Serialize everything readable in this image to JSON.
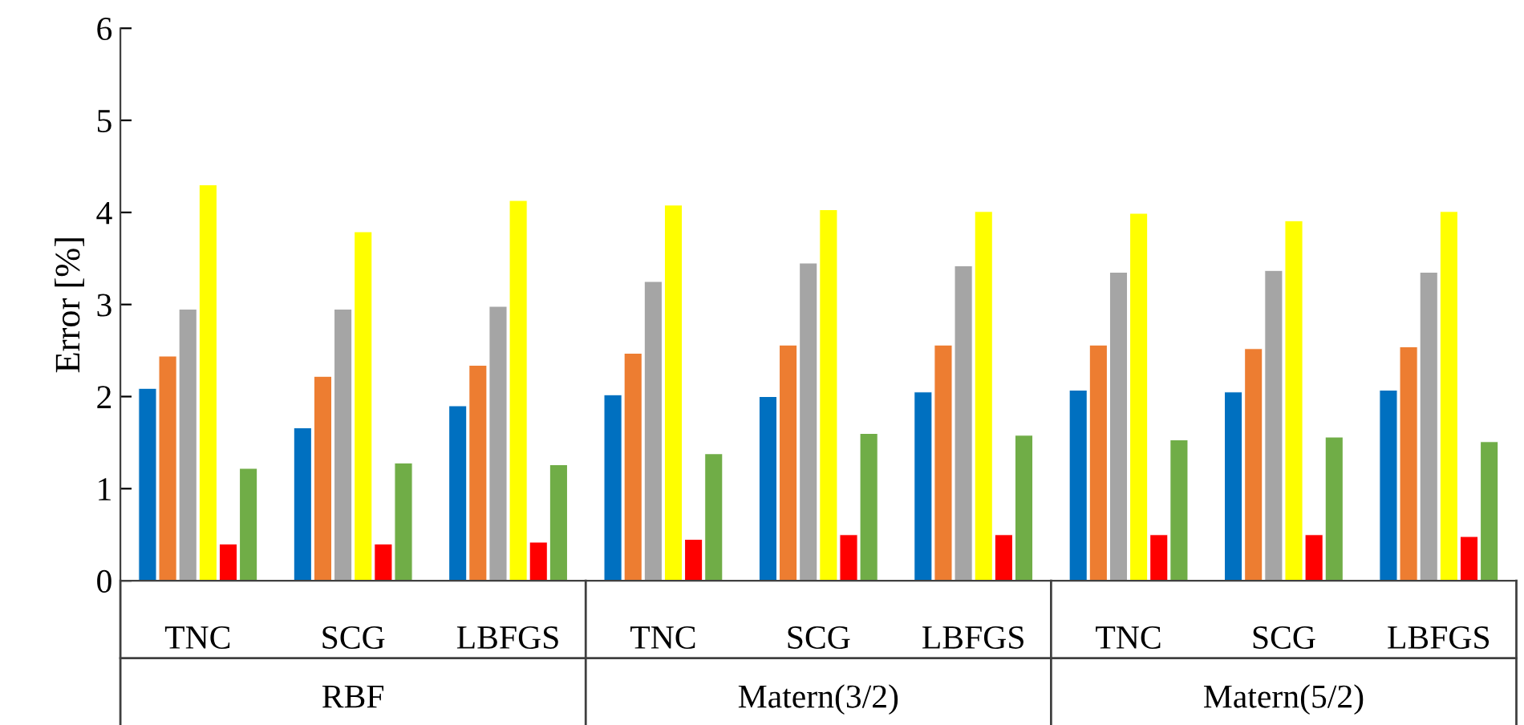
{
  "chart_data": {
    "type": "bar",
    "ylabel": "Error [%]",
    "categories": [
      "TNC",
      "SCG",
      "LBFGS",
      "TNC",
      "SCG",
      "LBFGS",
      "TNC",
      "SCG",
      "LBFGS"
    ],
    "annotations": [
      "RBF",
      "Matern(3/2)",
      "Matern(5/2)"
    ],
    "series": [
      {
        "color": "#0070c0",
        "values": [
          2.09,
          1.66,
          1.9,
          2.02,
          2.0,
          2.05,
          2.07,
          2.05,
          2.07
        ]
      },
      {
        "color": "#ed7d31",
        "values": [
          2.44,
          2.22,
          2.34,
          2.47,
          2.56,
          2.56,
          2.56,
          2.52,
          2.54
        ]
      },
      {
        "color": "#a5a5a5",
        "values": [
          2.95,
          2.95,
          2.98,
          3.25,
          3.45,
          3.42,
          3.35,
          3.37,
          3.35
        ]
      },
      {
        "color": "#ffff00",
        "values": [
          4.3,
          3.79,
          4.13,
          4.08,
          4.03,
          4.01,
          3.99,
          3.91,
          4.01
        ]
      },
      {
        "color": "#ff0000",
        "values": [
          0.4,
          0.4,
          0.42,
          0.45,
          0.5,
          0.5,
          0.5,
          0.5,
          0.48
        ]
      },
      {
        "color": "#70ad47",
        "values": [
          1.22,
          1.28,
          1.26,
          1.38,
          1.6,
          1.58,
          1.53,
          1.56,
          1.51
        ]
      }
    ],
    "ylim": [
      0,
      6
    ],
    "yticks": [
      0,
      1,
      2,
      3,
      4,
      5,
      6
    ],
    "grid": false,
    "legend": false
  }
}
